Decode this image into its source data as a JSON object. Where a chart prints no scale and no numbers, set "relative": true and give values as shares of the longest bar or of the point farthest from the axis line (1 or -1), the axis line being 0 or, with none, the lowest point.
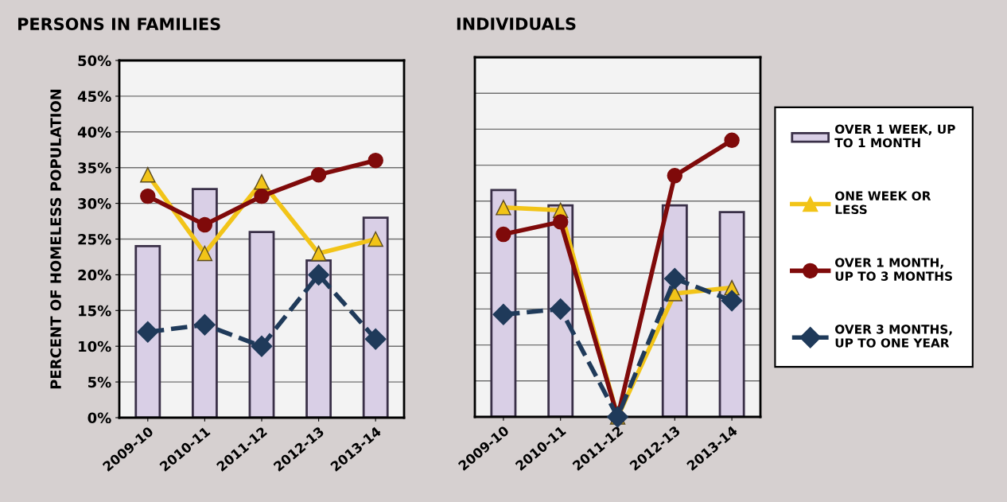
{
  "chart_data": [
    {
      "type": "bar",
      "title": "PERSONS IN FAMILIES",
      "ylabel": "PERCENT OF HOMELESS POPULATION",
      "categories": [
        "2009-10",
        "2010-11",
        "2011-12",
        "2012-13",
        "2013-14"
      ],
      "ylim": [
        0,
        50
      ],
      "yticks": [
        {
          "value": 0,
          "label": "0%"
        },
        {
          "value": 5,
          "label": "5%"
        },
        {
          "value": 10,
          "label": "10%"
        },
        {
          "value": 15,
          "label": "15%"
        },
        {
          "value": 20,
          "label": "20%"
        },
        {
          "value": 25,
          "label": "25%"
        },
        {
          "value": 30,
          "label": "30%"
        },
        {
          "value": 35,
          "label": "35%"
        },
        {
          "value": 40,
          "label": "40%"
        },
        {
          "value": 45,
          "label": "45%"
        },
        {
          "value": 50,
          "label": "50%"
        }
      ],
      "grid": "y",
      "legend": false,
      "series": [
        {
          "color": "#d9cfe6",
          "values": [
            24,
            32,
            26,
            22,
            28
          ]
        },
        {
          "type": "line",
          "color": "#f2c418",
          "marker": "triangle",
          "line_style": "solid",
          "values": [
            34,
            23,
            33,
            23,
            25
          ]
        },
        {
          "type": "line",
          "color": "#7f0a0a",
          "marker": "circle",
          "line_style": "solid",
          "values": [
            31,
            27,
            31,
            34,
            36
          ]
        },
        {
          "type": "line",
          "color": "#1f3a5a",
          "marker": "diamond",
          "line_style": "dashed",
          "values": [
            12,
            13,
            10,
            20,
            11
          ]
        }
      ]
    },
    {
      "type": "bar",
      "title": "INDIVIDUALS",
      "relative": true,
      "categories": [
        "2009-10",
        "2010-11",
        "2011-12",
        "2012-13",
        "2013-14"
      ],
      "grid": "y",
      "legend": "right",
      "series": [
        {
          "name": "OVER 1 WEEK, UP\nTO 1 MONTH",
          "color": "#d9cfe6",
          "values": [
            0.82,
            0.765,
            0,
            0.765,
            0.74
          ]
        },
        {
          "type": "line",
          "name": "ONE WEEK OR\nLESS",
          "color": "#f2c418",
          "marker": "triangle",
          "line_style": "solid",
          "values": [
            0.757,
            0.747,
            0,
            0.446,
            0.467
          ]
        },
        {
          "type": "line",
          "name": "OVER 1 MONTH,\nUP TO 3 MONTHS",
          "color": "#7f0a0a",
          "marker": "circle",
          "line_style": "solid",
          "values": [
            0.66,
            0.705,
            0,
            0.872,
            1
          ]
        },
        {
          "type": "line",
          "name": "OVER 3 MONTHS,\nUP TO ONE YEAR",
          "color": "#1f3a5a",
          "marker": "diamond",
          "line_style": "dashed",
          "values": [
            0.37,
            0.39,
            0,
            0.5,
            0.42
          ]
        }
      ]
    }
  ]
}
